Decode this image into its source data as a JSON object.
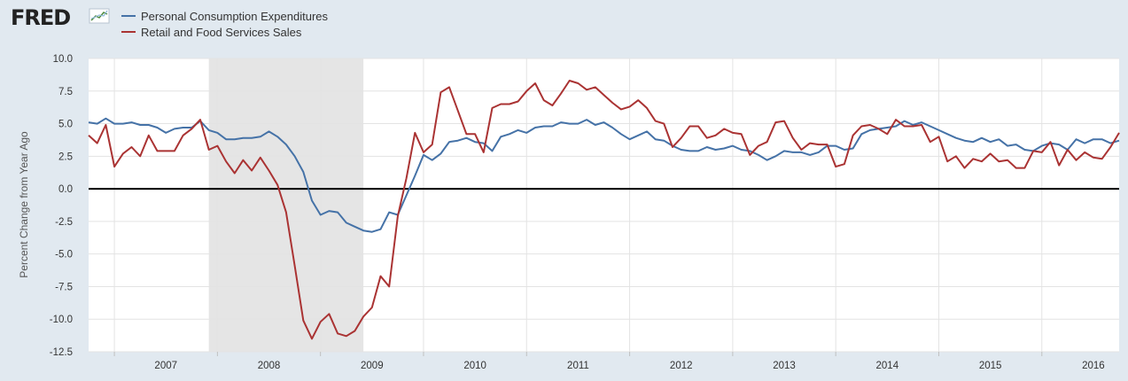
{
  "brand": {
    "name": "FRED",
    "icon": "fred-chart-logo-icon"
  },
  "chart_data": {
    "type": "line",
    "title": "",
    "xlabel": "",
    "ylabel": "Percent Change from Year Ago",
    "ylim": [
      -12.5,
      10
    ],
    "yticks": [
      "10.0",
      "7.5",
      "5.0",
      "2.5",
      "0.0",
      "-2.5",
      "-5.0",
      "-7.5",
      "-10.0",
      "-12.5"
    ],
    "xticks": [
      "2007",
      "2008",
      "2009",
      "2010",
      "2011",
      "2012",
      "2013",
      "2014",
      "2015",
      "2016"
    ],
    "x_start": "2006-10",
    "x_end": "2016-10",
    "recession": {
      "start": "2007-12",
      "end": "2009-06"
    },
    "grid": true,
    "zero_line": true,
    "legend_position": "top-left",
    "series": [
      {
        "name": "Personal Consumption Expenditures",
        "color": "#4572a7",
        "values": [
          5.1,
          5.0,
          5.4,
          5.0,
          5.0,
          5.1,
          4.9,
          4.9,
          4.7,
          4.3,
          4.6,
          4.7,
          4.7,
          5.2,
          4.5,
          4.3,
          3.8,
          3.8,
          3.9,
          3.9,
          4.0,
          4.4,
          4.0,
          3.4,
          2.5,
          1.3,
          -0.9,
          -2.0,
          -1.7,
          -1.8,
          -2.6,
          -2.9,
          -3.2,
          -3.3,
          -3.1,
          -1.8,
          -2.0,
          -0.5,
          1.0,
          2.6,
          2.2,
          2.7,
          3.6,
          3.7,
          3.9,
          3.6,
          3.5,
          2.9,
          4.0,
          4.2,
          4.5,
          4.3,
          4.7,
          4.8,
          4.8,
          5.1,
          5.0,
          5.0,
          5.3,
          4.9,
          5.1,
          4.7,
          4.2,
          3.8,
          4.1,
          4.4,
          3.8,
          3.7,
          3.3,
          3.0,
          2.9,
          2.9,
          3.2,
          3.0,
          3.1,
          3.3,
          3.0,
          2.9,
          2.6,
          2.2,
          2.5,
          2.9,
          2.8,
          2.8,
          2.6,
          2.8,
          3.3,
          3.3,
          3.0,
          3.1,
          4.2,
          4.5,
          4.6,
          4.7,
          4.8,
          5.2,
          4.9,
          5.1,
          4.8,
          4.5,
          4.2,
          3.9,
          3.7,
          3.6,
          3.9,
          3.6,
          3.8,
          3.3,
          3.4,
          3.0,
          2.9,
          3.3,
          3.5,
          3.4,
          3.0,
          3.8,
          3.5,
          3.8,
          3.8,
          3.5,
          3.7
        ]
      },
      {
        "name": "Retail and Food Services Sales",
        "color": "#aa3333",
        "values": [
          4.1,
          3.5,
          4.9,
          1.7,
          2.7,
          3.2,
          2.5,
          4.1,
          2.9,
          2.9,
          2.9,
          4.1,
          4.6,
          5.3,
          3.0,
          3.3,
          2.1,
          1.2,
          2.2,
          1.4,
          2.4,
          1.4,
          0.3,
          -1.8,
          -5.9,
          -10.1,
          -11.5,
          -10.2,
          -9.6,
          -11.1,
          -11.3,
          -10.9,
          -9.8,
          -9.1,
          -6.7,
          -7.5,
          -2.1,
          0.8,
          4.3,
          2.8,
          3.4,
          7.4,
          7.8,
          6.0,
          4.2,
          4.2,
          2.8,
          6.2,
          6.5,
          6.5,
          6.7,
          7.5,
          8.1,
          6.8,
          6.4,
          7.3,
          8.3,
          8.1,
          7.6,
          7.8,
          7.2,
          6.6,
          6.1,
          6.3,
          6.8,
          6.2,
          5.2,
          5.0,
          3.2,
          3.9,
          4.8,
          4.8,
          3.9,
          4.1,
          4.6,
          4.3,
          4.2,
          2.6,
          3.3,
          3.6,
          5.1,
          5.2,
          3.9,
          3.0,
          3.5,
          3.4,
          3.4,
          1.7,
          1.9,
          4.1,
          4.8,
          4.9,
          4.6,
          4.2,
          5.3,
          4.8,
          4.8,
          4.9,
          3.6,
          4.0,
          2.1,
          2.5,
          1.6,
          2.3,
          2.1,
          2.7,
          2.1,
          2.2,
          1.6,
          1.6,
          2.9,
          2.8,
          3.6,
          1.8,
          3.0,
          2.2,
          2.8,
          2.4,
          2.3,
          3.2,
          4.3
        ]
      }
    ]
  }
}
